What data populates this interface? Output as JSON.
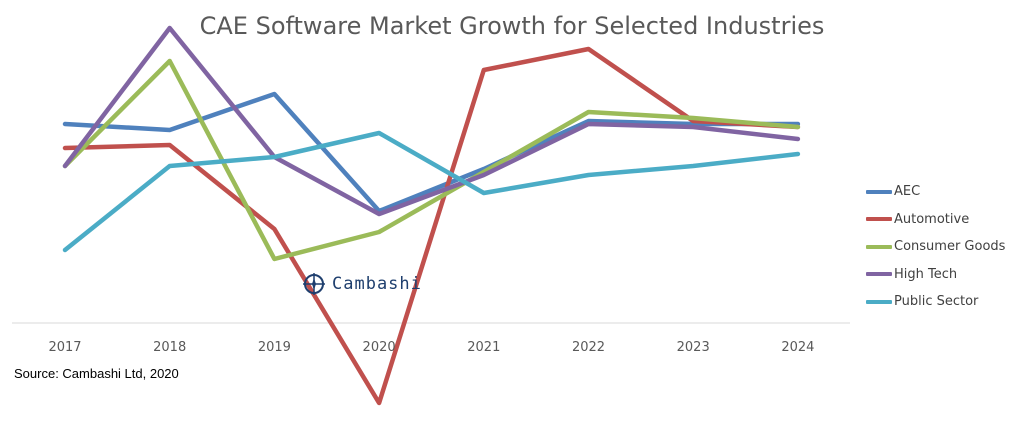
{
  "chart_data": {
    "type": "line",
    "title": "CAE Software Market Growth for Selected Industries",
    "xlabel": "",
    "ylabel": "",
    "x": [
      "2017",
      "2018",
      "2019",
      "2020",
      "2021",
      "2022",
      "2023",
      "2024"
    ],
    "ylim": [
      -0.3,
      0.9
    ],
    "grid": false,
    "legend_position": "right",
    "series": [
      {
        "name": "AEC",
        "color": "#4f81bd",
        "values": [
          0.62,
          0.6,
          0.72,
          0.33,
          0.47,
          0.63,
          0.62,
          0.62
        ]
      },
      {
        "name": "Automotive",
        "color": "#c0504d",
        "values": [
          0.54,
          0.55,
          0.27,
          -0.31,
          0.8,
          0.87,
          0.63,
          0.61
        ]
      },
      {
        "name": "Consumer Goods",
        "color": "#9bbb59",
        "values": [
          0.48,
          0.83,
          0.17,
          0.26,
          0.46,
          0.66,
          0.64,
          0.61
        ]
      },
      {
        "name": "High Tech",
        "color": "#8064a2",
        "values": [
          0.48,
          0.94,
          0.51,
          0.32,
          0.45,
          0.62,
          0.61,
          0.57
        ]
      },
      {
        "name": "Public Sector",
        "color": "#4bacc6",
        "values": [
          0.2,
          0.48,
          0.51,
          0.59,
          0.39,
          0.45,
          0.48,
          0.52
        ]
      }
    ]
  },
  "source": "Source: Cambashi Ltd, 2020",
  "watermark": "Cambashi"
}
